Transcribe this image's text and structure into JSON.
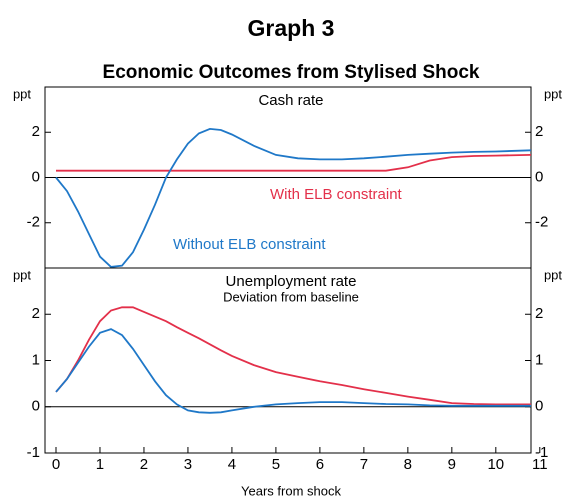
{
  "title": "Graph 3",
  "subtitle": "Economic Outcomes from Stylised Shock",
  "chart_data": [
    {
      "type": "line",
      "title": "Cash rate",
      "ylabel": "ppt",
      "x": [
        0,
        0.25,
        0.5,
        0.75,
        1,
        1.25,
        1.5,
        1.75,
        2,
        2.25,
        2.5,
        2.75,
        3,
        3.25,
        3.5,
        3.75,
        4,
        4.5,
        5,
        5.5,
        6,
        6.5,
        7,
        7.5,
        8,
        8.5,
        9,
        9.5,
        10,
        10.8
      ],
      "xlim": [
        -0.25,
        10.8
      ],
      "ylim": [
        -4,
        4
      ],
      "yticks": [
        -2,
        0,
        2
      ],
      "series": [
        {
          "name": "With ELB constraint",
          "color": "#e3304a",
          "values": [
            0.3,
            0.3,
            0.3,
            0.3,
            0.3,
            0.3,
            0.3,
            0.3,
            0.3,
            0.3,
            0.3,
            0.3,
            0.3,
            0.3,
            0.3,
            0.3,
            0.3,
            0.3,
            0.3,
            0.3,
            0.3,
            0.3,
            0.3,
            0.3,
            0.45,
            0.75,
            0.9,
            0.95,
            0.97,
            1.0
          ]
        },
        {
          "name": "Without ELB constraint",
          "color": "#1f78c8",
          "values": [
            0,
            -0.6,
            -1.5,
            -2.5,
            -3.5,
            -3.95,
            -3.9,
            -3.3,
            -2.3,
            -1.2,
            0,
            0.8,
            1.5,
            1.95,
            2.15,
            2.1,
            1.9,
            1.4,
            1.0,
            0.85,
            0.8,
            0.8,
            0.85,
            0.92,
            1.0,
            1.05,
            1.1,
            1.13,
            1.15,
            1.2
          ]
        }
      ]
    },
    {
      "type": "line",
      "title": "Unemployment rate",
      "subtitle": "Deviation from baseline",
      "ylabel": "ppt",
      "xlabel": "Years from shock",
      "x": [
        0,
        0.25,
        0.5,
        0.75,
        1,
        1.25,
        1.5,
        1.75,
        2,
        2.25,
        2.5,
        2.75,
        3,
        3.25,
        3.5,
        3.75,
        4,
        4.5,
        5,
        5.5,
        6,
        6.5,
        7,
        7.5,
        8,
        8.5,
        9,
        9.5,
        10,
        10.8
      ],
      "xlim": [
        -0.25,
        10.8
      ],
      "xticks": [
        0,
        1,
        2,
        3,
        4,
        5,
        6,
        7,
        8,
        9,
        10,
        11
      ],
      "ylim": [
        -1,
        3
      ],
      "yticks": [
        -1,
        0,
        1,
        2
      ],
      "series": [
        {
          "color": "#e3304a",
          "values": [
            0.32,
            0.6,
            1.0,
            1.45,
            1.85,
            2.08,
            2.15,
            2.15,
            2.05,
            1.95,
            1.85,
            1.72,
            1.6,
            1.48,
            1.35,
            1.22,
            1.1,
            0.9,
            0.75,
            0.65,
            0.55,
            0.47,
            0.38,
            0.3,
            0.22,
            0.15,
            0.08,
            0.06,
            0.05,
            0.05
          ]
        },
        {
          "color": "#1f78c8",
          "values": [
            0.32,
            0.6,
            0.95,
            1.3,
            1.6,
            1.68,
            1.55,
            1.25,
            0.9,
            0.55,
            0.25,
            0.05,
            -0.08,
            -0.12,
            -0.13,
            -0.12,
            -0.08,
            0,
            0.05,
            0.08,
            0.1,
            0.1,
            0.08,
            0.06,
            0.05,
            0.03,
            0.02,
            0.02,
            0.02,
            0.02
          ]
        }
      ]
    }
  ]
}
